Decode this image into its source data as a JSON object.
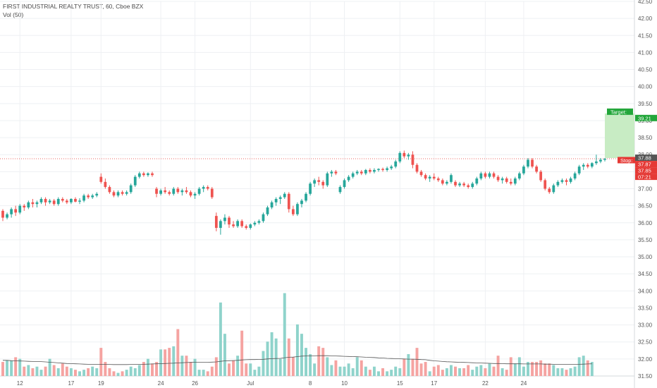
{
  "header": {
    "symbol_line": "FIRST INDUSTRIAL REALTY TRUST, 60, Cboe BZX",
    "volume_line": "Vol (50)"
  },
  "colors": {
    "up": "#26a69a",
    "down": "#ef5350",
    "up_vol": "#8fd3cb",
    "down_vol": "#f5a3a1",
    "target_zone": "#c8ecc4",
    "target_label": "#22a63a",
    "stop_label": "#e53935",
    "price_line": "#e53935",
    "grid": "#eef0f3",
    "ma_line": "#555555"
  },
  "chart_data": {
    "type": "candlestick",
    "title": "FIRST INDUSTRIAL REALTY TRUST, 60, Cboe BZX",
    "indicator": "Vol (50)",
    "ylim": [
      31.5,
      42.5
    ],
    "yticks": [
      "42.50",
      "42.00",
      "41.50",
      "41.00",
      "40.50",
      "40.00",
      "39.50",
      "39.00",
      "38.50",
      "38.00",
      "37.50",
      "37.00",
      "36.50",
      "36.00",
      "35.50",
      "35.00",
      "34.50",
      "34.00",
      "33.50",
      "33.00",
      "32.50",
      "32.00",
      "31.50"
    ],
    "xticks": [
      "12",
      "17",
      "19",
      "24",
      "26",
      "Jul",
      "8",
      "10",
      "15",
      "17",
      "22",
      "24"
    ],
    "candles": [
      {
        "o": 36.35,
        "h": 36.4,
        "l": 36.05,
        "c": 36.15
      },
      {
        "o": 36.15,
        "h": 36.3,
        "l": 36.1,
        "c": 36.25
      },
      {
        "o": 36.25,
        "h": 36.45,
        "l": 36.15,
        "c": 36.4
      },
      {
        "o": 36.4,
        "h": 36.5,
        "l": 36.2,
        "c": 36.3
      },
      {
        "o": 36.3,
        "h": 36.55,
        "l": 36.25,
        "c": 36.5
      },
      {
        "o": 36.5,
        "h": 36.55,
        "l": 36.35,
        "c": 36.45
      },
      {
        "o": 36.45,
        "h": 36.65,
        "l": 36.4,
        "c": 36.6
      },
      {
        "o": 36.6,
        "h": 36.7,
        "l": 36.45,
        "c": 36.55
      },
      {
        "o": 36.55,
        "h": 36.65,
        "l": 36.45,
        "c": 36.6
      },
      {
        "o": 36.6,
        "h": 36.75,
        "l": 36.55,
        "c": 36.7
      },
      {
        "o": 36.7,
        "h": 36.75,
        "l": 36.5,
        "c": 36.6
      },
      {
        "o": 36.6,
        "h": 36.7,
        "l": 36.55,
        "c": 36.65
      },
      {
        "o": 36.65,
        "h": 36.7,
        "l": 36.5,
        "c": 36.55
      },
      {
        "o": 36.55,
        "h": 36.75,
        "l": 36.5,
        "c": 36.7
      },
      {
        "o": 36.7,
        "h": 36.75,
        "l": 36.6,
        "c": 36.65
      },
      {
        "o": 36.65,
        "h": 36.7,
        "l": 36.55,
        "c": 36.6
      },
      {
        "o": 36.6,
        "h": 36.72,
        "l": 36.55,
        "c": 36.7
      },
      {
        "o": 36.7,
        "h": 36.75,
        "l": 36.6,
        "c": 36.62
      },
      {
        "o": 36.62,
        "h": 36.72,
        "l": 36.55,
        "c": 36.65
      },
      {
        "o": 36.65,
        "h": 36.85,
        "l": 36.6,
        "c": 36.8
      },
      {
        "o": 36.8,
        "h": 36.85,
        "l": 36.7,
        "c": 36.75
      },
      {
        "o": 36.75,
        "h": 36.85,
        "l": 36.7,
        "c": 36.8
      },
      {
        "o": 36.8,
        "h": 36.9,
        "l": 36.75,
        "c": 36.85
      },
      {
        "o": 37.35,
        "h": 37.45,
        "l": 37.15,
        "c": 37.2
      },
      {
        "o": 37.2,
        "h": 37.3,
        "l": 37.0,
        "c": 37.05
      },
      {
        "o": 37.05,
        "h": 37.1,
        "l": 36.85,
        "c": 36.9
      },
      {
        "o": 36.9,
        "h": 36.95,
        "l": 36.75,
        "c": 36.8
      },
      {
        "o": 36.8,
        "h": 36.95,
        "l": 36.75,
        "c": 36.9
      },
      {
        "o": 36.9,
        "h": 36.95,
        "l": 36.8,
        "c": 36.85
      },
      {
        "o": 36.85,
        "h": 36.95,
        "l": 36.8,
        "c": 36.9
      },
      {
        "o": 36.9,
        "h": 37.15,
        "l": 36.85,
        "c": 37.1
      },
      {
        "o": 37.1,
        "h": 37.4,
        "l": 37.05,
        "c": 37.35
      },
      {
        "o": 37.35,
        "h": 37.5,
        "l": 37.3,
        "c": 37.45
      },
      {
        "o": 37.45,
        "h": 37.5,
        "l": 37.35,
        "c": 37.4
      },
      {
        "o": 37.4,
        "h": 37.48,
        "l": 37.35,
        "c": 37.45
      },
      {
        "o": 37.45,
        "h": 37.5,
        "l": 37.35,
        "c": 37.4
      },
      {
        "o": 37.0,
        "h": 37.05,
        "l": 36.75,
        "c": 36.85
      },
      {
        "o": 36.85,
        "h": 37.0,
        "l": 36.8,
        "c": 36.95
      },
      {
        "o": 36.95,
        "h": 37.05,
        "l": 36.85,
        "c": 36.9
      },
      {
        "o": 36.9,
        "h": 36.95,
        "l": 36.8,
        "c": 36.85
      },
      {
        "o": 36.85,
        "h": 37.05,
        "l": 36.8,
        "c": 37.0
      },
      {
        "o": 37.0,
        "h": 37.05,
        "l": 36.85,
        "c": 36.9
      },
      {
        "o": 36.9,
        "h": 37.0,
        "l": 36.8,
        "c": 36.95
      },
      {
        "o": 36.95,
        "h": 37.05,
        "l": 36.85,
        "c": 36.9
      },
      {
        "o": 36.9,
        "h": 36.95,
        "l": 36.75,
        "c": 36.8
      },
      {
        "o": 36.8,
        "h": 36.9,
        "l": 36.7,
        "c": 36.85
      },
      {
        "o": 36.85,
        "h": 37.05,
        "l": 36.8,
        "c": 37.0
      },
      {
        "o": 37.0,
        "h": 37.1,
        "l": 36.9,
        "c": 37.05
      },
      {
        "o": 37.05,
        "h": 37.1,
        "l": 36.95,
        "c": 37.0
      },
      {
        "o": 37.0,
        "h": 37.05,
        "l": 36.7,
        "c": 36.75
      },
      {
        "o": 36.2,
        "h": 36.3,
        "l": 35.75,
        "c": 35.85
      },
      {
        "o": 35.85,
        "h": 36.1,
        "l": 35.65,
        "c": 36.05
      },
      {
        "o": 36.05,
        "h": 36.25,
        "l": 35.95,
        "c": 36.15
      },
      {
        "o": 36.15,
        "h": 36.2,
        "l": 35.85,
        "c": 35.95
      },
      {
        "o": 35.95,
        "h": 36.05,
        "l": 35.85,
        "c": 35.9
      },
      {
        "o": 35.9,
        "h": 36.1,
        "l": 35.85,
        "c": 36.05
      },
      {
        "o": 36.05,
        "h": 36.1,
        "l": 35.85,
        "c": 35.9
      },
      {
        "o": 35.9,
        "h": 35.95,
        "l": 35.8,
        "c": 35.85
      },
      {
        "o": 35.85,
        "h": 35.98,
        "l": 35.8,
        "c": 35.95
      },
      {
        "o": 35.95,
        "h": 36.05,
        "l": 35.9,
        "c": 36.0
      },
      {
        "o": 36.0,
        "h": 36.1,
        "l": 35.95,
        "c": 36.05
      },
      {
        "o": 36.05,
        "h": 36.3,
        "l": 36.0,
        "c": 36.25
      },
      {
        "o": 36.25,
        "h": 36.5,
        "l": 36.2,
        "c": 36.45
      },
      {
        "o": 36.45,
        "h": 36.65,
        "l": 36.4,
        "c": 36.6
      },
      {
        "o": 36.6,
        "h": 36.75,
        "l": 36.5,
        "c": 36.7
      },
      {
        "o": 36.7,
        "h": 36.8,
        "l": 36.55,
        "c": 36.75
      },
      {
        "o": 36.75,
        "h": 36.9,
        "l": 36.7,
        "c": 36.85
      },
      {
        "o": 36.85,
        "h": 36.9,
        "l": 36.3,
        "c": 36.4
      },
      {
        "o": 36.4,
        "h": 36.5,
        "l": 36.2,
        "c": 36.25
      },
      {
        "o": 36.25,
        "h": 36.6,
        "l": 36.2,
        "c": 36.55
      },
      {
        "o": 36.55,
        "h": 36.7,
        "l": 36.45,
        "c": 36.65
      },
      {
        "o": 36.65,
        "h": 36.9,
        "l": 36.6,
        "c": 36.85
      },
      {
        "o": 36.85,
        "h": 37.2,
        "l": 36.8,
        "c": 37.15
      },
      {
        "o": 37.15,
        "h": 37.3,
        "l": 37.05,
        "c": 37.25
      },
      {
        "o": 37.25,
        "h": 37.35,
        "l": 37.1,
        "c": 37.2
      },
      {
        "o": 37.2,
        "h": 37.25,
        "l": 37.0,
        "c": 37.1
      },
      {
        "o": 37.1,
        "h": 37.5,
        "l": 37.05,
        "c": 37.45
      },
      {
        "o": 37.45,
        "h": 37.55,
        "l": 37.35,
        "c": 37.5
      },
      {
        "o": 37.5,
        "h": 37.55,
        "l": 37.4,
        "c": 37.45
      },
      {
        "o": 36.9,
        "h": 37.1,
        "l": 36.85,
        "c": 37.05
      },
      {
        "o": 37.05,
        "h": 37.3,
        "l": 37.0,
        "c": 37.25
      },
      {
        "o": 37.25,
        "h": 37.4,
        "l": 37.2,
        "c": 37.35
      },
      {
        "o": 37.35,
        "h": 37.5,
        "l": 37.3,
        "c": 37.45
      },
      {
        "o": 37.45,
        "h": 37.55,
        "l": 37.4,
        "c": 37.5
      },
      {
        "o": 37.5,
        "h": 37.55,
        "l": 37.4,
        "c": 37.45
      },
      {
        "o": 37.45,
        "h": 37.58,
        "l": 37.4,
        "c": 37.55
      },
      {
        "o": 37.55,
        "h": 37.6,
        "l": 37.45,
        "c": 37.5
      },
      {
        "o": 37.5,
        "h": 37.6,
        "l": 37.45,
        "c": 37.55
      },
      {
        "o": 37.55,
        "h": 37.6,
        "l": 37.5,
        "c": 37.58
      },
      {
        "o": 37.58,
        "h": 37.62,
        "l": 37.5,
        "c": 37.55
      },
      {
        "o": 37.55,
        "h": 37.65,
        "l": 37.5,
        "c": 37.6
      },
      {
        "o": 37.6,
        "h": 37.7,
        "l": 37.55,
        "c": 37.65
      },
      {
        "o": 37.65,
        "h": 37.85,
        "l": 37.6,
        "c": 37.8
      },
      {
        "o": 37.8,
        "h": 38.1,
        "l": 37.75,
        "c": 38.05
      },
      {
        "o": 38.05,
        "h": 38.12,
        "l": 37.9,
        "c": 37.95
      },
      {
        "o": 37.95,
        "h": 38.05,
        "l": 37.85,
        "c": 38.0
      },
      {
        "o": 38.0,
        "h": 38.1,
        "l": 37.6,
        "c": 37.7
      },
      {
        "o": 37.7,
        "h": 37.75,
        "l": 37.45,
        "c": 37.5
      },
      {
        "o": 37.5,
        "h": 37.55,
        "l": 37.35,
        "c": 37.4
      },
      {
        "o": 37.4,
        "h": 37.45,
        "l": 37.25,
        "c": 37.3
      },
      {
        "o": 37.3,
        "h": 37.4,
        "l": 37.2,
        "c": 37.35
      },
      {
        "o": 37.35,
        "h": 37.45,
        "l": 37.25,
        "c": 37.3
      },
      {
        "o": 37.3,
        "h": 37.35,
        "l": 37.2,
        "c": 37.25
      },
      {
        "o": 37.25,
        "h": 37.3,
        "l": 37.1,
        "c": 37.15
      },
      {
        "o": 37.15,
        "h": 37.25,
        "l": 37.1,
        "c": 37.2
      },
      {
        "o": 37.2,
        "h": 37.45,
        "l": 37.15,
        "c": 37.4
      },
      {
        "o": 37.2,
        "h": 37.25,
        "l": 37.05,
        "c": 37.1
      },
      {
        "o": 37.1,
        "h": 37.2,
        "l": 37.05,
        "c": 37.15
      },
      {
        "o": 37.15,
        "h": 37.2,
        "l": 37.05,
        "c": 37.1
      },
      {
        "o": 37.1,
        "h": 37.15,
        "l": 37.0,
        "c": 37.05
      },
      {
        "o": 37.05,
        "h": 37.2,
        "l": 37.0,
        "c": 37.15
      },
      {
        "o": 37.15,
        "h": 37.35,
        "l": 37.1,
        "c": 37.3
      },
      {
        "o": 37.3,
        "h": 37.5,
        "l": 37.25,
        "c": 37.45
      },
      {
        "o": 37.45,
        "h": 37.5,
        "l": 37.3,
        "c": 37.35
      },
      {
        "o": 37.35,
        "h": 37.5,
        "l": 37.3,
        "c": 37.45
      },
      {
        "o": 37.45,
        "h": 37.5,
        "l": 37.3,
        "c": 37.35
      },
      {
        "o": 37.35,
        "h": 37.4,
        "l": 37.2,
        "c": 37.25
      },
      {
        "o": 37.25,
        "h": 37.35,
        "l": 37.15,
        "c": 37.3
      },
      {
        "o": 37.3,
        "h": 37.35,
        "l": 37.15,
        "c": 37.2
      },
      {
        "o": 37.2,
        "h": 37.3,
        "l": 37.1,
        "c": 37.15
      },
      {
        "o": 37.15,
        "h": 37.35,
        "l": 37.1,
        "c": 37.3
      },
      {
        "o": 37.3,
        "h": 37.5,
        "l": 37.25,
        "c": 37.45
      },
      {
        "o": 37.45,
        "h": 37.7,
        "l": 37.4,
        "c": 37.65
      },
      {
        "o": 37.65,
        "h": 37.9,
        "l": 37.6,
        "c": 37.85
      },
      {
        "o": 37.85,
        "h": 37.9,
        "l": 37.6,
        "c": 37.65
      },
      {
        "o": 37.65,
        "h": 37.7,
        "l": 37.45,
        "c": 37.5
      },
      {
        "o": 37.5,
        "h": 37.55,
        "l": 37.2,
        "c": 37.25
      },
      {
        "o": 37.25,
        "h": 37.3,
        "l": 36.95,
        "c": 37.0
      },
      {
        "o": 37.0,
        "h": 37.05,
        "l": 36.85,
        "c": 36.9
      },
      {
        "o": 36.9,
        "h": 37.15,
        "l": 36.85,
        "c": 37.1
      },
      {
        "o": 37.1,
        "h": 37.25,
        "l": 37.05,
        "c": 37.2
      },
      {
        "o": 37.2,
        "h": 37.3,
        "l": 37.15,
        "c": 37.25
      },
      {
        "o": 37.25,
        "h": 37.3,
        "l": 37.1,
        "c": 37.2
      },
      {
        "o": 37.2,
        "h": 37.35,
        "l": 37.15,
        "c": 37.3
      },
      {
        "o": 37.3,
        "h": 37.5,
        "l": 37.25,
        "c": 37.45
      },
      {
        "o": 37.45,
        "h": 37.7,
        "l": 37.4,
        "c": 37.65
      },
      {
        "o": 37.65,
        "h": 37.75,
        "l": 37.55,
        "c": 37.7
      },
      {
        "o": 37.7,
        "h": 37.75,
        "l": 37.6,
        "c": 37.65
      },
      {
        "o": 37.65,
        "h": 37.78,
        "l": 37.6,
        "c": 37.75
      },
      {
        "o": 37.75,
        "h": 38.0,
        "l": 37.7,
        "c": 37.8
      },
      {
        "o": 37.8,
        "h": 37.9,
        "l": 37.75,
        "c": 37.85
      },
      {
        "o": 37.85,
        "h": 37.9,
        "l": 37.8,
        "c": 37.88
      }
    ],
    "volume": [
      0.9,
      1.0,
      1.0,
      1.2,
      1.1,
      0.6,
      0.7,
      0.5,
      0.6,
      0.4,
      0.6,
      1.1,
      0.7,
      0.5,
      0.8,
      0.6,
      0.5,
      0.4,
      0.3,
      0.4,
      0.5,
      0.6,
      0.5,
      1.8,
      0.9,
      0.5,
      0.3,
      0.2,
      0.3,
      0.4,
      0.6,
      0.5,
      0.7,
      0.9,
      1.1,
      0.8,
      0.9,
      1.7,
      1.7,
      1.8,
      1.9,
      3.0,
      1.3,
      1.3,
      0.9,
      1.1,
      0.4,
      0.4,
      0.3,
      0.6,
      1.2,
      4.7,
      2.7,
      0.8,
      1.0,
      1.3,
      2.9,
      0.8,
      0.8,
      0.4,
      0.6,
      1.6,
      2.2,
      2.8,
      2.4,
      1.1,
      5.3,
      2.4,
      1.2,
      3.3,
      2.7,
      1.8,
      1.4,
      0.8,
      1.9,
      1.8,
      1.2,
      0.7,
      1.0,
      0.6,
      0.6,
      0.8,
      0.5,
      1.2,
      1.0,
      0.6,
      0.4,
      0.6,
      0.3,
      0.5,
      0.3,
      0.4,
      0.6,
      0.5,
      1.1,
      1.4,
      1.1,
      1.8,
      0.8,
      0.9,
      0.3,
      0.6,
      0.7,
      0.4,
      0.5,
      0.7,
      0.6,
      0.5,
      0.5,
      0.7,
      0.4,
      0.6,
      0.7,
      0.5,
      0.8,
      0.6,
      1.3,
      0.5,
      0.4,
      1.2,
      0.8,
      1.2,
      0.6,
      0.9,
      0.9,
      0.9,
      1.0,
      0.8,
      0.8,
      0.7,
      0.5,
      0.5,
      0.4,
      0.5,
      0.6,
      1.2,
      1.3,
      1.0,
      0.9
    ],
    "vol_ylim": [
      0,
      6
    ],
    "vol_ma": [
      1.0,
      1.0,
      0.98,
      0.97,
      0.96,
      0.95,
      0.94,
      0.93,
      0.93,
      0.92,
      0.9,
      0.88,
      0.86,
      0.84,
      0.82,
      0.8,
      0.79,
      0.78,
      0.77,
      0.76,
      0.75,
      0.75,
      0.74,
      0.74,
      0.74,
      0.74,
      0.73,
      0.73,
      0.73,
      0.73,
      0.74,
      0.74,
      0.75,
      0.75,
      0.76,
      0.77,
      0.78,
      0.79,
      0.8,
      0.81,
      0.82,
      0.84,
      0.85,
      0.86,
      0.87,
      0.88,
      0.88,
      0.88,
      0.88,
      0.89,
      0.9,
      0.94,
      0.97,
      0.98,
      0.99,
      1.0,
      1.03,
      1.04,
      1.05,
      1.05,
      1.06,
      1.07,
      1.09,
      1.11,
      1.12,
      1.13,
      1.17,
      1.2,
      1.21,
      1.24,
      1.27,
      1.28,
      1.29,
      1.29,
      1.3,
      1.3,
      1.3,
      1.29,
      1.28,
      1.27,
      1.26,
      1.25,
      1.24,
      1.23,
      1.22,
      1.2,
      1.19,
      1.18,
      1.16,
      1.15,
      1.13,
      1.12,
      1.11,
      1.1,
      1.09,
      1.08,
      1.08,
      1.07,
      1.05,
      1.04,
      1.0,
      0.97,
      0.95,
      0.93,
      0.91,
      0.9,
      0.89,
      0.88,
      0.87,
      0.86,
      0.85,
      0.84,
      0.83,
      0.82,
      0.81,
      0.8,
      0.8,
      0.79,
      0.78,
      0.78,
      0.78,
      0.78,
      0.77,
      0.77,
      0.77,
      0.77,
      0.77,
      0.76,
      0.76,
      0.75,
      0.75,
      0.74,
      0.74,
      0.74,
      0.74,
      0.75,
      0.76,
      0.77,
      0.78
    ],
    "trade_box": {
      "target_label": "Target:",
      "target_value": "39.21",
      "stop_label": "Stop:",
      "entry": 37.9,
      "target": 39.21,
      "stop": 37.85
    },
    "price_labels": [
      {
        "value": "37.88",
        "price": 37.88,
        "kind": "current"
      },
      {
        "value": "37.87",
        "price": 37.87,
        "kind": "stop"
      },
      {
        "value": "37.85",
        "price": 37.85,
        "kind": "stop"
      },
      {
        "value": "07:21",
        "price": 37.69,
        "kind": "countdown"
      }
    ]
  }
}
